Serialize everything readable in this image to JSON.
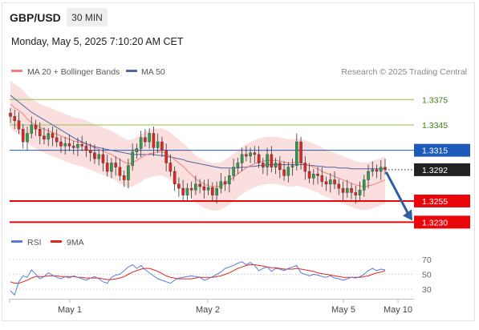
{
  "header": {
    "symbol": "GBP/USD",
    "timeframe": "30 MIN",
    "datetime": "Monday, May 5, 2025 7:10:20 AM CET"
  },
  "legend": {
    "ma20_bb": "MA 20 + Bollinger Bands",
    "ma50": "MA 50",
    "copyright": "Research © 2025 Trading Central",
    "rsi": "RSI",
    "ma9": "9MA"
  },
  "colors": {
    "up": "#2e9e4a",
    "down": "#e0261e",
    "bands": "#f8c9c9",
    "ma20": "#f08080",
    "ma50": "#4a67a8",
    "resistance": "#8bc34a",
    "pivot": "#1e5bb8",
    "support": "#e8060a",
    "current": "#222222",
    "rsi": "#5b7bd5",
    "rsi_ma": "#e0261e",
    "arrow": "#2d5fa6"
  },
  "chart_data": [
    {
      "type": "candlestick",
      "title": "GBP/USD",
      "timeframe": "30 MIN",
      "x_ticks": [
        "May 1",
        "May 2",
        "May 5",
        "May 10"
      ],
      "ylim": [
        1.3218,
        1.3398
      ],
      "price_levels": [
        {
          "label": "1.3375",
          "value": 1.3375,
          "kind": "resistance"
        },
        {
          "label": "1.3345",
          "value": 1.3345,
          "kind": "resistance"
        },
        {
          "label": "1.3315",
          "value": 1.3315,
          "kind": "pivot"
        },
        {
          "label": "1.3292",
          "value": 1.3292,
          "kind": "current"
        },
        {
          "label": "1.3255",
          "value": 1.3255,
          "kind": "support"
        },
        {
          "label": "1.3230",
          "value": 1.323,
          "kind": "support"
        }
      ],
      "forecast_arrow": {
        "from": 1.3292,
        "to": 1.323
      },
      "close": [
        1.3355,
        1.335,
        1.334,
        1.3325,
        1.3335,
        1.3345,
        1.334,
        1.3332,
        1.3328,
        1.3335,
        1.333,
        1.3325,
        1.332,
        1.3323,
        1.332,
        1.3318,
        1.3322,
        1.332,
        1.3315,
        1.3312,
        1.3305,
        1.331,
        1.33,
        1.329,
        1.33,
        1.3295,
        1.3285,
        1.328,
        1.3297,
        1.3313,
        1.3317,
        1.333,
        1.3325,
        1.3335,
        1.3318,
        1.3325,
        1.3315,
        1.33,
        1.329,
        1.3275,
        1.327,
        1.3262,
        1.327,
        1.3268,
        1.3275,
        1.3272,
        1.3268,
        1.3271,
        1.3262,
        1.327,
        1.3278,
        1.3275,
        1.3285,
        1.3295,
        1.33,
        1.331,
        1.3308,
        1.3312,
        1.331,
        1.33,
        1.3295,
        1.331,
        1.3295,
        1.33,
        1.3292,
        1.3285,
        1.3295,
        1.3297,
        1.3325,
        1.33,
        1.329,
        1.3282,
        1.3287,
        1.3285,
        1.3278,
        1.3275,
        1.328,
        1.3275,
        1.327,
        1.3265,
        1.327,
        1.3265,
        1.3262,
        1.3268,
        1.328,
        1.329,
        1.3292,
        1.329,
        1.3295,
        1.3292
      ],
      "ma20": [
        1.337,
        1.3365,
        1.3362,
        1.3358,
        1.3352,
        1.3348,
        1.3345,
        1.3342,
        1.334,
        1.3338,
        1.3336,
        1.3334,
        1.3332,
        1.333,
        1.3328,
        1.3326,
        1.3325,
        1.3324,
        1.3322,
        1.332,
        1.3318,
        1.3316,
        1.3314,
        1.3312,
        1.331,
        1.3307,
        1.3304,
        1.3301,
        1.3299,
        1.33,
        1.3303,
        1.3306,
        1.3309,
        1.3311,
        1.3312,
        1.3313,
        1.3313,
        1.3311,
        1.3308,
        1.3304,
        1.33,
        1.3296,
        1.3291,
        1.3286,
        1.3281,
        1.3278,
        1.3275,
        1.3273,
        1.3272,
        1.3272,
        1.3273,
        1.3276,
        1.3279,
        1.3283,
        1.3287,
        1.3291,
        1.3294,
        1.3297,
        1.3299,
        1.3301,
        1.3302,
        1.3303,
        1.3303,
        1.3303,
        1.3302,
        1.3301,
        1.33,
        1.33,
        1.3301,
        1.33,
        1.3299,
        1.3297,
        1.3295,
        1.3293,
        1.329,
        1.3288,
        1.3286,
        1.3284,
        1.3282,
        1.328,
        1.3278,
        1.3276,
        1.3274,
        1.3273,
        1.3272,
        1.3273,
        1.3274,
        1.3276,
        1.3278,
        1.328
      ],
      "ma50": [
        1.338,
        1.3376,
        1.3372,
        1.3368,
        1.3364,
        1.336,
        1.3357,
        1.3354,
        1.3351,
        1.3348,
        1.3345,
        1.3342,
        1.3339,
        1.3336,
        1.3333,
        1.333,
        1.3327,
        1.3325,
        1.3323,
        1.3321,
        1.3319,
        1.3318,
        1.3317,
        1.3316,
        1.3315,
        1.3314,
        1.3313,
        1.3312,
        1.3311,
        1.331,
        1.331,
        1.331,
        1.331,
        1.331,
        1.331,
        1.3309,
        1.3309,
        1.3308,
        1.3307,
        1.3306,
        1.3305,
        1.3304,
        1.3302,
        1.3301,
        1.33,
        1.3299,
        1.3298,
        1.3297,
        1.3296,
        1.3295,
        1.3294,
        1.3294,
        1.3294,
        1.3294,
        1.3294,
        1.3295,
        1.3295,
        1.3296,
        1.3296,
        1.3297,
        1.3297,
        1.3298,
        1.3298,
        1.3298,
        1.3298,
        1.3298,
        1.3298,
        1.3298,
        1.3298,
        1.3298,
        1.3298,
        1.3297,
        1.3297,
        1.3296,
        1.3296,
        1.3295,
        1.3295,
        1.3295,
        1.3294,
        1.3294,
        1.3294,
        1.3293,
        1.3293,
        1.3293,
        1.3293,
        1.3293,
        1.3293,
        1.3293,
        1.3293,
        1.3293
      ],
      "band_width": 0.0028
    },
    {
      "type": "line",
      "title": "RSI",
      "y_ticks": [
        70,
        50,
        30
      ],
      "ylim": [
        20,
        75
      ],
      "series": [
        {
          "name": "RSI",
          "values": [
            28,
            22,
            40,
            48,
            46,
            56,
            50,
            44,
            47,
            52,
            49,
            46,
            44,
            47,
            45,
            48,
            46,
            44,
            42,
            45,
            47,
            44,
            40,
            38,
            46,
            49,
            50,
            55,
            60,
            63,
            58,
            62,
            56,
            52,
            48,
            44,
            42,
            40,
            38,
            42,
            45,
            46,
            47,
            48,
            47,
            46,
            42,
            44,
            47,
            50,
            53,
            58,
            60,
            62,
            65,
            67,
            63,
            66,
            62,
            55,
            58,
            60,
            54,
            58,
            57,
            55,
            58,
            60,
            62,
            52,
            50,
            48,
            50,
            49,
            47,
            46,
            48,
            45,
            44,
            42,
            44,
            46,
            45,
            47,
            50,
            55,
            58,
            55,
            57,
            56
          ]
        },
        {
          "name": "9MA",
          "values": [
            40,
            38,
            38,
            40,
            42,
            45,
            47,
            47,
            47,
            48,
            48,
            48,
            47,
            47,
            47,
            47,
            46,
            46,
            45,
            45,
            45,
            45,
            44,
            43,
            43,
            44,
            45,
            47,
            50,
            53,
            55,
            57,
            58,
            58,
            56,
            54,
            51,
            48,
            46,
            45,
            44,
            44,
            44,
            44,
            45,
            46,
            46,
            46,
            46,
            47,
            48,
            50,
            52,
            55,
            58,
            60,
            62,
            63,
            63,
            62,
            61,
            60,
            59,
            59,
            58,
            57,
            57,
            57,
            58,
            57,
            56,
            55,
            54,
            52,
            51,
            50,
            49,
            48,
            47,
            46,
            46,
            46,
            46,
            46,
            47,
            48,
            50,
            52,
            53,
            55
          ]
        }
      ]
    }
  ]
}
